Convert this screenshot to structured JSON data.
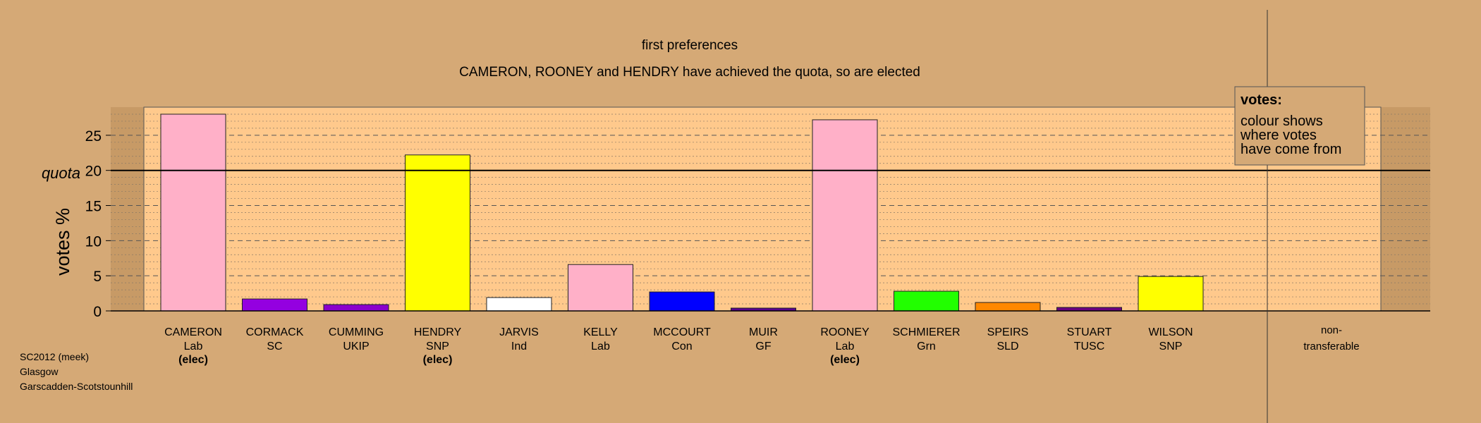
{
  "chart_data": {
    "type": "bar",
    "title": "first preferences",
    "subtitle": "CAMERON, ROONEY and HENDRY have achieved the quota, so are elected",
    "ylabel": "votes %",
    "ylim": [
      0,
      29
    ],
    "yticks": [
      0,
      5,
      10,
      15,
      20,
      25
    ],
    "quota": {
      "label": "quota",
      "value": 20
    },
    "grid": true,
    "legend": {
      "title": "votes:",
      "lines": [
        "colour shows",
        "where votes",
        "have come from"
      ],
      "position": "top-right"
    },
    "categories": [
      {
        "name": "CAMERON",
        "party": "Lab",
        "status": "(elec)",
        "value": 28.0,
        "color": "#ffb0c8"
      },
      {
        "name": "CORMACK",
        "party": "SC",
        "status": "",
        "value": 1.7,
        "color": "#9400e0"
      },
      {
        "name": "CUMMING",
        "party": "UKIP",
        "status": "",
        "value": 0.9,
        "color": "#8b00cc"
      },
      {
        "name": "HENDRY",
        "party": "SNP",
        "status": "(elec)",
        "value": 22.2,
        "color": "#ffff00"
      },
      {
        "name": "JARVIS",
        "party": "Ind",
        "status": "",
        "value": 1.9,
        "color": "#ffffff"
      },
      {
        "name": "KELLY",
        "party": "Lab",
        "status": "",
        "value": 6.6,
        "color": "#ffb0c8"
      },
      {
        "name": "MCCOURT",
        "party": "Con",
        "status": "",
        "value": 2.7,
        "color": "#0000ff"
      },
      {
        "name": "MUIR",
        "party": "GF",
        "status": "",
        "value": 0.4,
        "color": "#5a0090"
      },
      {
        "name": "ROONEY",
        "party": "Lab",
        "status": "(elec)",
        "value": 27.2,
        "color": "#ffb0c8"
      },
      {
        "name": "SCHMIERER",
        "party": "Grn",
        "status": "",
        "value": 2.8,
        "color": "#22ff00"
      },
      {
        "name": "SPEIRS",
        "party": "SLD",
        "status": "",
        "value": 1.2,
        "color": "#ff8800"
      },
      {
        "name": "STUART",
        "party": "TUSC",
        "status": "",
        "value": 0.5,
        "color": "#6a0080"
      },
      {
        "name": "WILSON",
        "party": "SNP",
        "status": "",
        "value": 4.9,
        "color": "#ffff00"
      }
    ],
    "nontransferable": {
      "label_line1": "non-",
      "label_line2": "transferable",
      "value": 0
    }
  },
  "footer": {
    "line1": "SC2012 (meek)",
    "line2": "Glasgow",
    "line3": "Garscadden-Scotstounhill"
  },
  "colors": {
    "background": "#d5a976",
    "plot_area": "#ffc98c",
    "outer_band": "#c79a66"
  }
}
